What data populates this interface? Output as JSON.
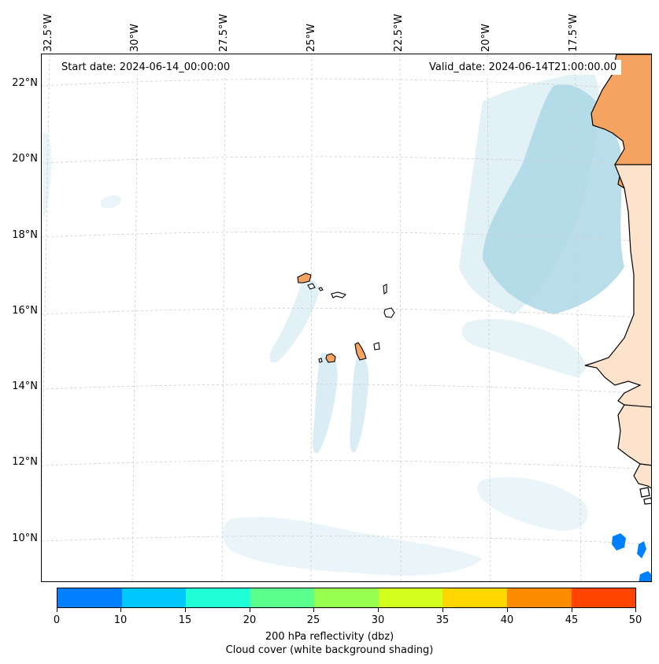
{
  "map": {
    "longitude_labels": [
      "32.5°W",
      "30°W",
      "27.5°W",
      "25°W",
      "22.5°W",
      "20°W",
      "17.5°W"
    ],
    "latitude_labels": [
      "22°N",
      "20°N",
      "18°N",
      "16°N",
      "14°N",
      "12°N",
      "10°N"
    ],
    "start_date": "Start date: 2024-06-14_00:00:00",
    "valid_date": "Valid_date: 2024-06-14T21:00:00.00",
    "land_color": "#f4a460",
    "cloud_color": "#add8e6",
    "radar_color": "#0080ff"
  },
  "colorbar": {
    "ticks": [
      "0",
      "10",
      "15",
      "20",
      "25",
      "30",
      "35",
      "40",
      "45",
      "50"
    ],
    "colors": [
      "#0080ff",
      "#00c8ff",
      "#1effd8",
      "#5aff8c",
      "#96ff50",
      "#d2ff1e",
      "#ffd700",
      "#ff8c00",
      "#ff4500"
    ],
    "label": "200 hPa reflectivity (dbz)",
    "sublabel": "Cloud cover (white background shading)"
  }
}
